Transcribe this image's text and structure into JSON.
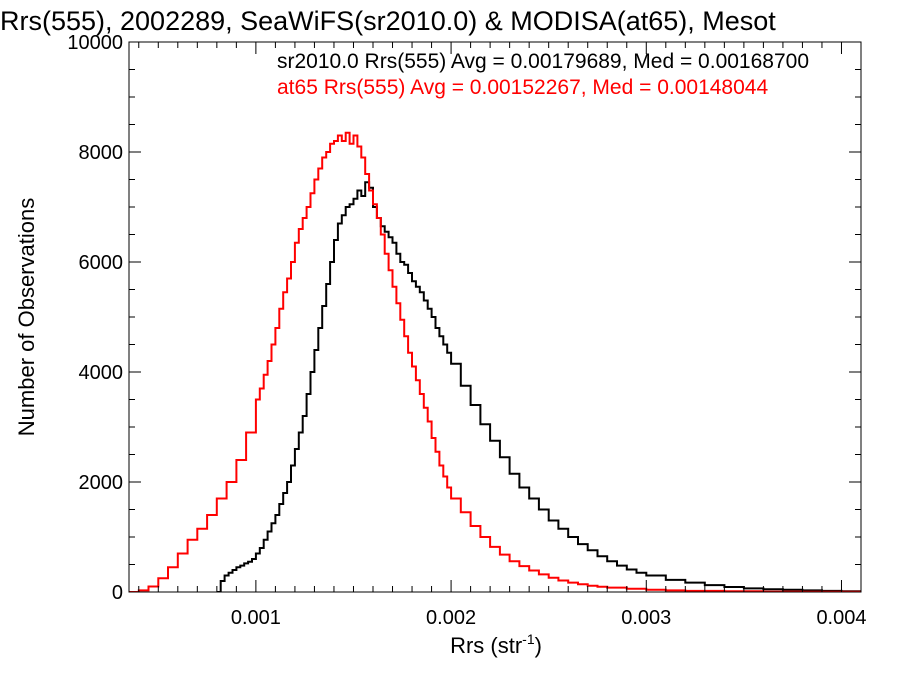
{
  "chart_data": {
    "type": "line",
    "title": "Rrs(555), 2002289, SeaWiFS(sr2010.0) & MODISA(at65), Mesot",
    "xlabel": "Rrs (str",
    "xlabel_sup": "-1",
    "xlabel_end": ")",
    "ylabel": "Number of Observations",
    "xlim": [
      0.00035,
      0.0041
    ],
    "ylim": [
      0,
      10000
    ],
    "xticks": [
      0.001,
      0.002,
      0.003,
      0.004
    ],
    "xtick_labels": [
      "0.001",
      "0.002",
      "0.003",
      "0.004"
    ],
    "yticks": [
      0,
      2000,
      4000,
      6000,
      8000,
      10000
    ],
    "ytick_labels": [
      "0",
      "2000",
      "4000",
      "6000",
      "8000",
      "10000"
    ],
    "grid": false,
    "step": true,
    "annotations": [
      {
        "text": "sr2010.0 Rrs(555) Avg = 0.00179689, Med = 0.00168700",
        "color": "#000000"
      },
      {
        "text": "at65 Rrs(555) Avg = 0.00152267, Med = 0.00148044",
        "color": "#ff0000"
      }
    ],
    "series": [
      {
        "color": "#000000",
        "x": [
          0.0008,
          0.00082,
          0.00084,
          0.00086,
          0.00088,
          0.0009,
          0.00092,
          0.00094,
          0.00096,
          0.00098,
          0.001,
          0.00102,
          0.00104,
          0.00106,
          0.00108,
          0.0011,
          0.00112,
          0.00114,
          0.00116,
          0.00118,
          0.0012,
          0.00122,
          0.00124,
          0.00126,
          0.00128,
          0.0013,
          0.00132,
          0.00134,
          0.00136,
          0.00138,
          0.0014,
          0.00142,
          0.00144,
          0.00146,
          0.00148,
          0.0015,
          0.00152,
          0.00154,
          0.00156,
          0.00158,
          0.0016,
          0.00162,
          0.00164,
          0.00166,
          0.00168,
          0.0017,
          0.00172,
          0.00174,
          0.00176,
          0.00178,
          0.0018,
          0.00182,
          0.00184,
          0.00186,
          0.00188,
          0.0019,
          0.00192,
          0.00194,
          0.00196,
          0.00198,
          0.002,
          0.00205,
          0.0021,
          0.00215,
          0.0022,
          0.00225,
          0.0023,
          0.00235,
          0.0024,
          0.00245,
          0.0025,
          0.00255,
          0.0026,
          0.00265,
          0.0027,
          0.00275,
          0.0028,
          0.00285,
          0.0029,
          0.00295,
          0.003,
          0.0031,
          0.0032,
          0.0033,
          0.0034,
          0.0035,
          0.0036,
          0.0037,
          0.0038,
          0.0039,
          0.004,
          0.0041
        ],
        "values": [
          0,
          200,
          300,
          350,
          400,
          450,
          480,
          520,
          550,
          600,
          700,
          800,
          950,
          1100,
          1250,
          1400,
          1600,
          1800,
          2000,
          2300,
          2600,
          2900,
          3200,
          3600,
          4000,
          4400,
          4800,
          5200,
          5600,
          6000,
          6400,
          6700,
          6850,
          7000,
          7050,
          7150,
          7300,
          7200,
          7450,
          7350,
          7000,
          6800,
          6650,
          6550,
          6450,
          6350,
          6150,
          6000,
          5950,
          5800,
          5650,
          5550,
          5450,
          5300,
          5150,
          5000,
          4800,
          4650,
          4500,
          4350,
          4150,
          3750,
          3400,
          3050,
          2750,
          2450,
          2150,
          1900,
          1700,
          1500,
          1300,
          1150,
          1000,
          870,
          760,
          650,
          560,
          480,
          410,
          350,
          300,
          220,
          170,
          125,
          90,
          65,
          50,
          40,
          30,
          20,
          15,
          10
        ]
      },
      {
        "color": "#ff0000",
        "x": [
          0.00035,
          0.0004,
          0.00045,
          0.0005,
          0.00055,
          0.0006,
          0.00065,
          0.0007,
          0.00075,
          0.0008,
          0.00085,
          0.0009,
          0.00095,
          0.001,
          0.00102,
          0.00104,
          0.00106,
          0.00108,
          0.0011,
          0.00112,
          0.00114,
          0.00116,
          0.00118,
          0.0012,
          0.00122,
          0.00124,
          0.00126,
          0.00128,
          0.0013,
          0.00132,
          0.00134,
          0.00136,
          0.00138,
          0.0014,
          0.00142,
          0.00144,
          0.00146,
          0.00148,
          0.0015,
          0.00152,
          0.00154,
          0.00156,
          0.00158,
          0.0016,
          0.00162,
          0.00164,
          0.00166,
          0.00168,
          0.0017,
          0.00172,
          0.00174,
          0.00176,
          0.00178,
          0.0018,
          0.00182,
          0.00184,
          0.00186,
          0.00188,
          0.0019,
          0.00192,
          0.00194,
          0.00196,
          0.00198,
          0.002,
          0.00205,
          0.0021,
          0.00215,
          0.0022,
          0.00225,
          0.0023,
          0.00235,
          0.0024,
          0.00245,
          0.0025,
          0.00255,
          0.0026,
          0.00265,
          0.0027,
          0.00275,
          0.0028,
          0.0029,
          0.003,
          0.0031,
          0.0032,
          0.0034,
          0.0036,
          0.0038,
          0.004,
          0.0041
        ],
        "values": [
          0,
          30,
          100,
          250,
          450,
          700,
          950,
          1150,
          1400,
          1700,
          2000,
          2400,
          2900,
          3500,
          3700,
          3950,
          4200,
          4500,
          4800,
          5150,
          5450,
          5700,
          6000,
          6350,
          6600,
          6800,
          7000,
          7250,
          7500,
          7700,
          7900,
          8000,
          8150,
          8200,
          8300,
          8200,
          8350,
          8150,
          8300,
          8100,
          7900,
          7600,
          7300,
          7050,
          6800,
          6500,
          6150,
          5850,
          5550,
          5250,
          4950,
          4650,
          4350,
          4100,
          3850,
          3600,
          3350,
          3100,
          2800,
          2550,
          2300,
          2100,
          1900,
          1700,
          1450,
          1200,
          1000,
          820,
          680,
          560,
          470,
          390,
          320,
          260,
          210,
          170,
          140,
          115,
          95,
          80,
          60,
          40,
          30,
          20,
          12,
          8,
          5,
          3,
          2
        ]
      }
    ]
  }
}
